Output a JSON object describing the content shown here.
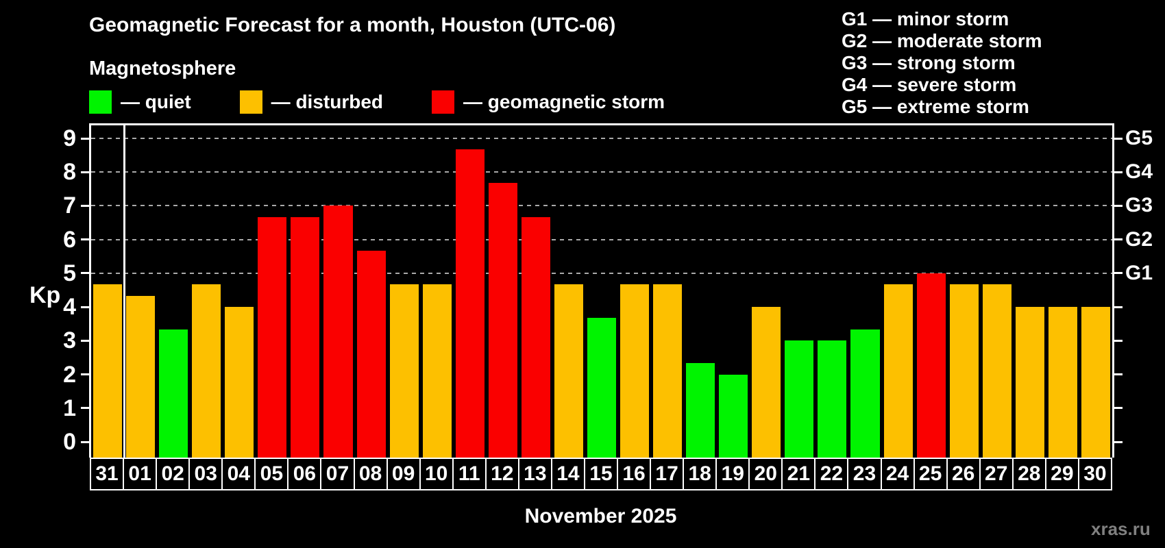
{
  "title": "Geomagnetic Forecast for a month, Houston (UTC-06)",
  "subtitle": "Magnetosphere",
  "legend": {
    "items": [
      {
        "status": "quiet",
        "label": "— quiet"
      },
      {
        "status": "disturbed",
        "label": "— disturbed"
      },
      {
        "status": "storm",
        "label": "— geomagnetic storm"
      }
    ]
  },
  "g_scale_legend": {
    "items": [
      "G1 — minor storm",
      "G2 — moderate storm",
      "G3 — strong storm",
      "G4 — severe storm",
      "G5 — extreme storm"
    ]
  },
  "watermark": "xras.ru",
  "chart_data": {
    "type": "bar",
    "title": "Geomagnetic Forecast for a month, Houston (UTC-06)",
    "subtitle": "Magnetosphere",
    "ylabel": "Kp",
    "xlabel": "November 2025",
    "ylim": [
      0,
      9
    ],
    "y_ticks": [
      0,
      1,
      2,
      3,
      4,
      5,
      6,
      7,
      8,
      9
    ],
    "gridlines_at": [
      5,
      6,
      7,
      8,
      9
    ],
    "right_axis_labels": [
      {
        "value": 5,
        "label": "G1"
      },
      {
        "value": 6,
        "label": "G2"
      },
      {
        "value": 7,
        "label": "G3"
      },
      {
        "value": 8,
        "label": "G4"
      },
      {
        "value": 9,
        "label": "G5"
      }
    ],
    "month_separator_after_index": 0,
    "categories": [
      "31",
      "01",
      "02",
      "03",
      "04",
      "05",
      "06",
      "07",
      "08",
      "09",
      "10",
      "11",
      "12",
      "13",
      "14",
      "15",
      "16",
      "17",
      "18",
      "19",
      "20",
      "21",
      "22",
      "23",
      "24",
      "25",
      "26",
      "27",
      "28",
      "29",
      "30"
    ],
    "values": [
      4.67,
      4.33,
      3.33,
      4.67,
      4.0,
      6.67,
      6.67,
      7.0,
      5.67,
      4.67,
      4.67,
      8.67,
      7.67,
      6.67,
      4.67,
      3.67,
      4.67,
      4.67,
      2.33,
      2.0,
      4.0,
      3.0,
      3.0,
      3.33,
      4.67,
      5.0,
      4.67,
      4.67,
      4.0,
      4.0,
      4.0
    ],
    "statuses": [
      "disturbed",
      "disturbed",
      "quiet",
      "disturbed",
      "disturbed",
      "storm",
      "storm",
      "storm",
      "storm",
      "disturbed",
      "disturbed",
      "storm",
      "storm",
      "storm",
      "disturbed",
      "quiet",
      "disturbed",
      "disturbed",
      "quiet",
      "quiet",
      "disturbed",
      "quiet",
      "quiet",
      "quiet",
      "disturbed",
      "storm",
      "disturbed",
      "disturbed",
      "disturbed",
      "disturbed",
      "disturbed"
    ],
    "status_colors": {
      "quiet": "#00f400",
      "disturbed": "#fdc000",
      "storm": "#fa0000"
    },
    "grid_color": "#aaaaaa",
    "axis_color": "#ffffff"
  }
}
